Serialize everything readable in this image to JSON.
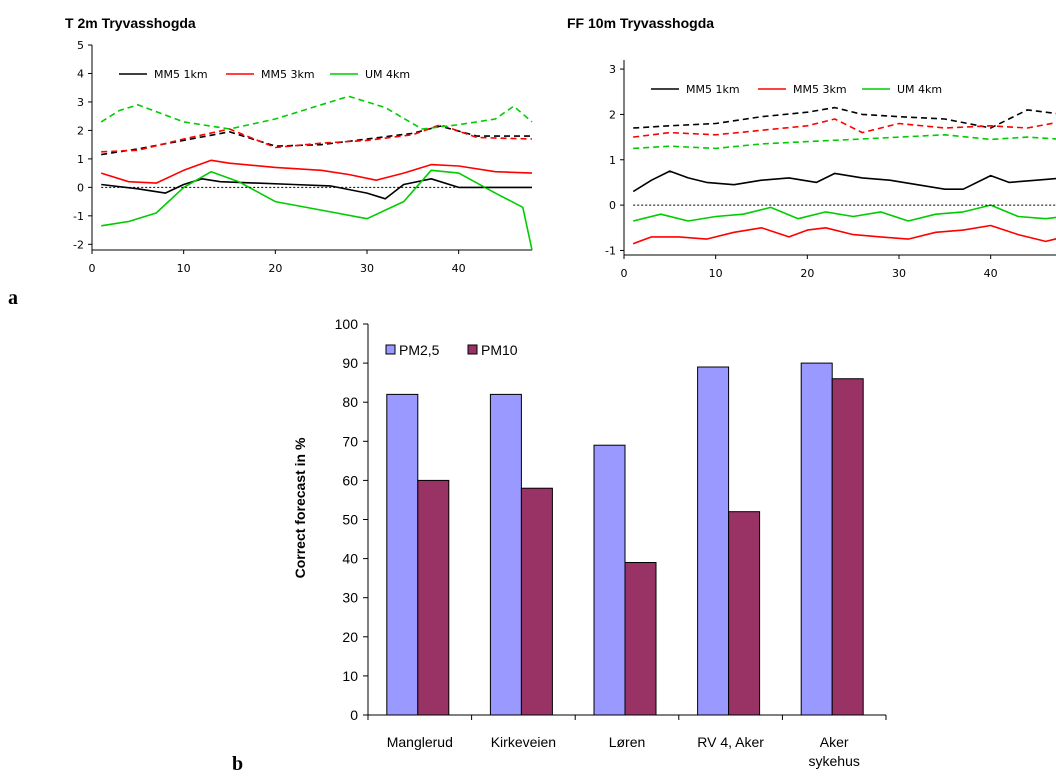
{
  "panel_labels": {
    "a": "a",
    "b": "b"
  },
  "chart_data": [
    {
      "type": "line",
      "title": "T 2m Tryvasshogda",
      "xlabel": "",
      "ylabel": "",
      "xlim": [
        0,
        48
      ],
      "ylim": [
        -2.2,
        5
      ],
      "xticks": [
        "0",
        "10",
        "20",
        "30",
        "40"
      ],
      "yticks": [
        "5",
        "4",
        "3",
        "2",
        "1",
        "0",
        "-1",
        "-2"
      ],
      "legend": [
        "MM5 1km",
        "MM5 3km",
        "UM 4km"
      ],
      "legend_position": "top",
      "grid": false,
      "series": [
        {
          "name": "MM5 1km",
          "style": "solid",
          "color": "#000000",
          "x": [
            1,
            5,
            8,
            10,
            12,
            14,
            18,
            22,
            26,
            30,
            32,
            34,
            37,
            40,
            44,
            48
          ],
          "y": [
            0.1,
            -0.05,
            -0.2,
            0.1,
            0.3,
            0.2,
            0.15,
            0.1,
            0.05,
            -0.2,
            -0.4,
            0.1,
            0.3,
            0.0,
            0.0,
            0.0
          ]
        },
        {
          "name": "MM5 3km",
          "style": "solid",
          "color": "#ff0000",
          "x": [
            1,
            4,
            7,
            10,
            13,
            15,
            20,
            25,
            28,
            31,
            34,
            37,
            40,
            44,
            48
          ],
          "y": [
            0.5,
            0.2,
            0.15,
            0.6,
            0.95,
            0.85,
            0.7,
            0.6,
            0.45,
            0.25,
            0.5,
            0.8,
            0.75,
            0.55,
            0.5
          ]
        },
        {
          "name": "UM 4km",
          "style": "solid",
          "color": "#00cc00",
          "x": [
            1,
            4,
            7,
            10,
            13,
            16,
            20,
            25,
            30,
            34,
            37,
            40,
            44,
            47,
            48
          ],
          "y": [
            -1.35,
            -1.2,
            -0.9,
            0.0,
            0.55,
            0.2,
            -0.5,
            -0.8,
            -1.1,
            -0.5,
            0.6,
            0.5,
            -0.2,
            -0.7,
            -2.2
          ]
        },
        {
          "name": "MM5 1km",
          "style": "dashed",
          "color": "#000000",
          "x": [
            1,
            5,
            10,
            15,
            20,
            25,
            30,
            35,
            38,
            42,
            48
          ],
          "y": [
            1.15,
            1.35,
            1.65,
            1.95,
            1.45,
            1.5,
            1.7,
            1.9,
            2.15,
            1.8,
            1.8
          ]
        },
        {
          "name": "MM5 3km",
          "style": "dashed",
          "color": "#ff0000",
          "x": [
            1,
            5,
            10,
            15,
            20,
            25,
            30,
            35,
            38,
            42,
            48
          ],
          "y": [
            1.25,
            1.3,
            1.7,
            2.05,
            1.4,
            1.55,
            1.65,
            1.85,
            2.2,
            1.75,
            1.7
          ]
        },
        {
          "name": "UM 4km",
          "style": "dashed",
          "color": "#00cc00",
          "x": [
            1,
            3,
            5,
            10,
            15,
            20,
            25,
            28,
            32,
            36,
            40,
            44,
            46,
            48
          ],
          "y": [
            2.3,
            2.7,
            2.9,
            2.3,
            2.05,
            2.4,
            2.9,
            3.2,
            2.8,
            2.05,
            2.2,
            2.4,
            2.85,
            2.3
          ]
        },
        {
          "name": "",
          "style": "dotted",
          "color": "#000000",
          "x": [
            1,
            48
          ],
          "y": [
            0,
            0
          ]
        }
      ]
    },
    {
      "type": "line",
      "title": "FF 10m Tryvasshogda",
      "xlabel": "",
      "ylabel": "",
      "xlim": [
        0,
        48
      ],
      "ylim": [
        -1.1,
        3.2
      ],
      "xticks": [
        "0",
        "10",
        "20",
        "30",
        "40"
      ],
      "yticks": [
        "3",
        "2",
        "1",
        "0",
        "-1"
      ],
      "legend": [
        "MM5 1km",
        "MM5 3km",
        "UM 4km"
      ],
      "legend_position": "top",
      "grid": false,
      "series": [
        {
          "name": "MM5 1km",
          "style": "solid",
          "color": "#000000",
          "x": [
            1,
            3,
            5,
            7,
            9,
            12,
            15,
            18,
            21,
            23,
            26,
            29,
            32,
            35,
            37,
            40,
            42,
            45,
            48
          ],
          "y": [
            0.3,
            0.55,
            0.75,
            0.6,
            0.5,
            0.45,
            0.55,
            0.6,
            0.5,
            0.7,
            0.6,
            0.55,
            0.45,
            0.35,
            0.35,
            0.65,
            0.5,
            0.55,
            0.6
          ]
        },
        {
          "name": "MM5 3km",
          "style": "solid",
          "color": "#ff0000",
          "x": [
            1,
            3,
            6,
            9,
            12,
            15,
            18,
            20,
            22,
            25,
            28,
            31,
            34,
            37,
            40,
            43,
            46,
            48
          ],
          "y": [
            -0.85,
            -0.7,
            -0.7,
            -0.75,
            -0.6,
            -0.5,
            -0.7,
            -0.55,
            -0.5,
            -0.65,
            -0.7,
            -0.75,
            -0.6,
            -0.55,
            -0.45,
            -0.65,
            -0.8,
            -0.7
          ]
        },
        {
          "name": "UM 4km",
          "style": "solid",
          "color": "#00cc00",
          "x": [
            1,
            4,
            7,
            10,
            13,
            16,
            19,
            22,
            25,
            28,
            31,
            34,
            37,
            40,
            43,
            46,
            48
          ],
          "y": [
            -0.35,
            -0.2,
            -0.35,
            -0.25,
            -0.2,
            -0.05,
            -0.3,
            -0.15,
            -0.25,
            -0.15,
            -0.35,
            -0.2,
            -0.15,
            0.0,
            -0.25,
            -0.3,
            -0.25
          ]
        },
        {
          "name": "MM5 1km",
          "style": "dashed",
          "color": "#000000",
          "x": [
            1,
            5,
            10,
            15,
            20,
            23,
            26,
            30,
            35,
            40,
            44,
            48
          ],
          "y": [
            1.7,
            1.75,
            1.8,
            1.95,
            2.05,
            2.15,
            2.0,
            1.95,
            1.9,
            1.7,
            2.1,
            2.0
          ]
        },
        {
          "name": "MM5 3km",
          "style": "dashed",
          "color": "#ff0000",
          "x": [
            1,
            5,
            10,
            15,
            20,
            23,
            26,
            30,
            35,
            40,
            44,
            48
          ],
          "y": [
            1.5,
            1.6,
            1.55,
            1.65,
            1.75,
            1.9,
            1.6,
            1.8,
            1.7,
            1.75,
            1.7,
            1.85
          ]
        },
        {
          "name": "UM 4km",
          "style": "dashed",
          "color": "#00cc00",
          "x": [
            1,
            5,
            10,
            15,
            20,
            25,
            30,
            35,
            40,
            44,
            48
          ],
          "y": [
            1.25,
            1.3,
            1.25,
            1.35,
            1.4,
            1.45,
            1.5,
            1.55,
            1.45,
            1.5,
            1.45
          ]
        },
        {
          "name": "",
          "style": "dotted",
          "color": "#000000",
          "x": [
            1,
            48
          ],
          "y": [
            0,
            0
          ]
        }
      ]
    },
    {
      "type": "bar",
      "title": "",
      "xlabel": "",
      "ylabel": "Correct forecast in %",
      "ylim": [
        0,
        100
      ],
      "yticks": [
        "0",
        "10",
        "20",
        "30",
        "40",
        "50",
        "60",
        "70",
        "80",
        "90",
        "100"
      ],
      "categories": [
        [
          "Manglerud"
        ],
        [
          "Kirkeveien"
        ],
        [
          "Løren"
        ],
        [
          "RV 4, Aker"
        ],
        [
          "Aker",
          "sykehus"
        ]
      ],
      "legend_position": "top-left",
      "grid": false,
      "series": [
        {
          "name": "PM2,5",
          "color": "#9999ff",
          "values": [
            82,
            82,
            69,
            89,
            90
          ]
        },
        {
          "name": "PM10",
          "color": "#993366",
          "values": [
            60,
            58,
            39,
            52,
            86
          ]
        }
      ]
    }
  ]
}
